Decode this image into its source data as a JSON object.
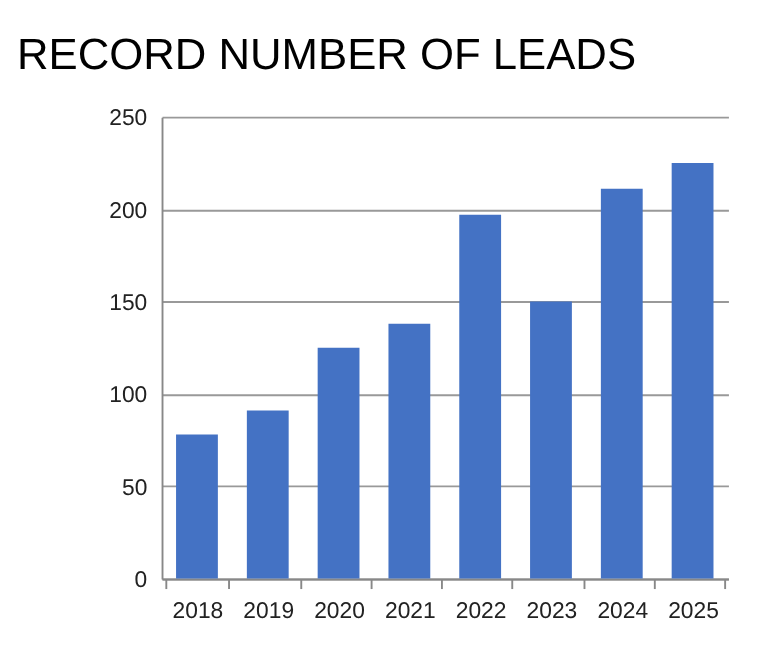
{
  "chart_data": {
    "type": "bar",
    "title": "RECORD NUMBER OF LEADS",
    "categories": [
      "2018",
      "2019",
      "2020",
      "2021",
      "2022",
      "2023",
      "2024",
      "2025"
    ],
    "values": [
      78,
      91,
      125,
      138,
      197,
      150,
      211,
      225
    ],
    "color": "#4472c4",
    "ylim": [
      0,
      250
    ],
    "yticks": [
      0,
      50,
      100,
      150,
      200,
      250
    ],
    "grid": "y"
  }
}
